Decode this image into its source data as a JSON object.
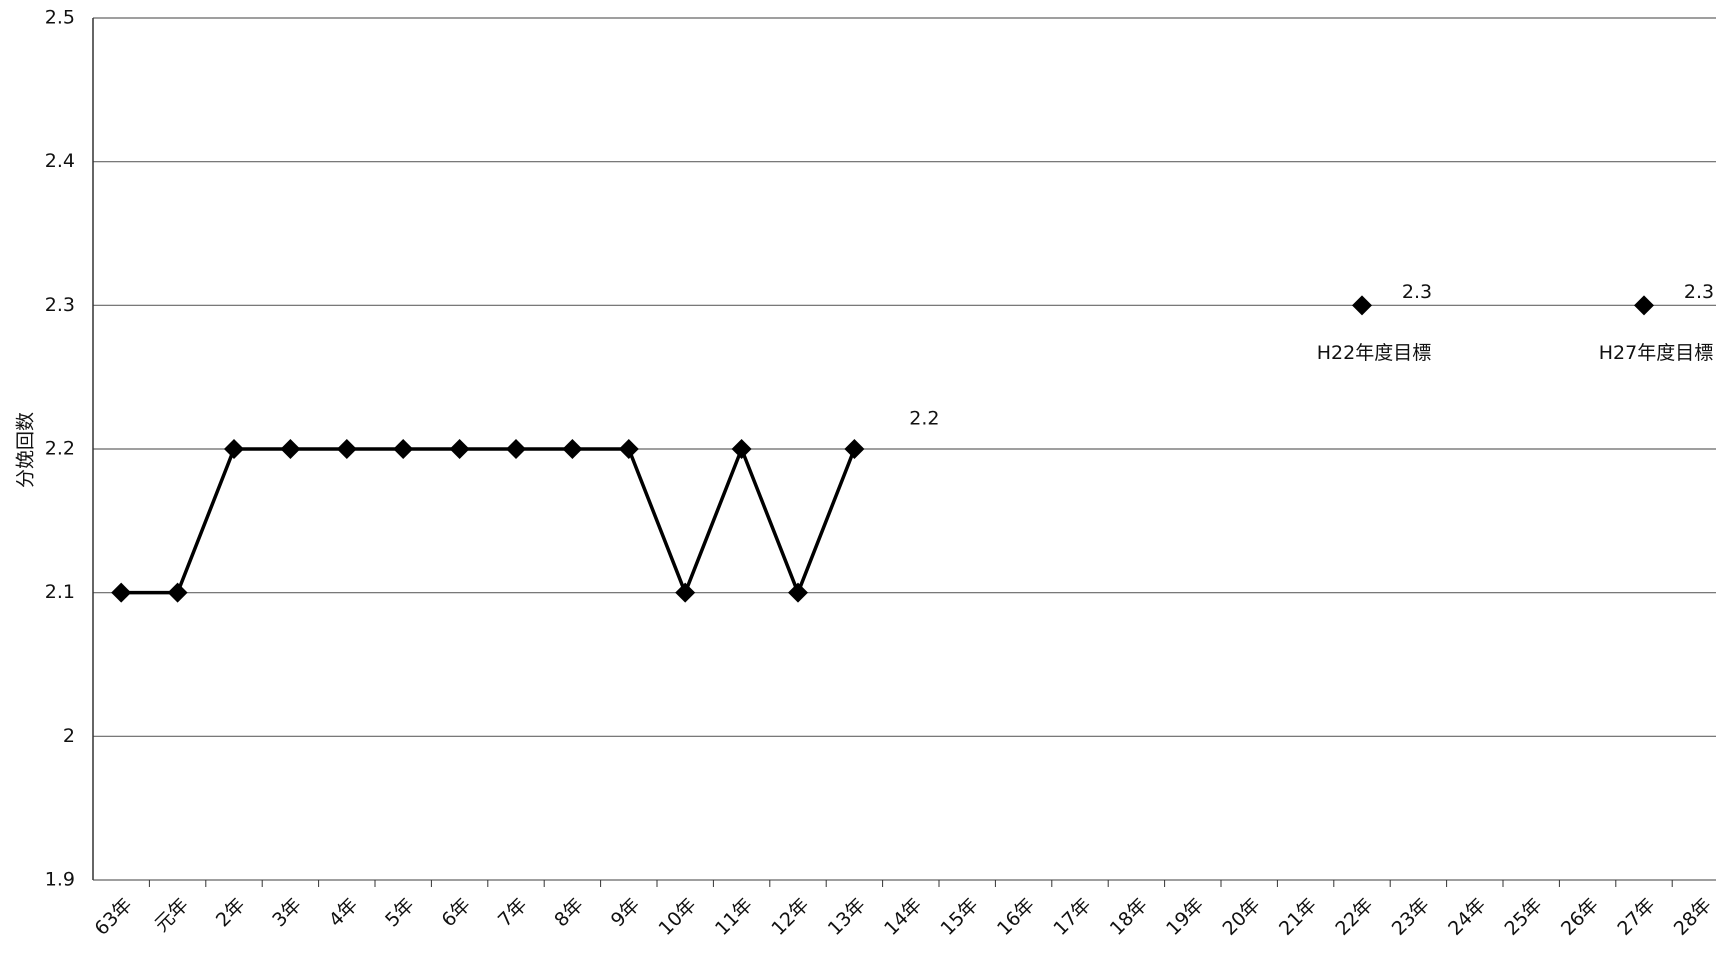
{
  "chart_data": {
    "type": "line",
    "y_label": "分娩回数",
    "categories": [
      "63年",
      "元年",
      "2年",
      "3年",
      "4年",
      "5年",
      "6年",
      "7年",
      "8年",
      "9年",
      "10年",
      "11年",
      "12年",
      "13年",
      "14年",
      "15年",
      "16年",
      "17年",
      "18年",
      "19年",
      "20年",
      "21年",
      "22年",
      "23年",
      "24年",
      "25年",
      "26年",
      "27年",
      "28年"
    ],
    "series": [
      {
        "color": "#000000",
        "connected": true,
        "values": [
          2.1,
          2.1,
          2.2,
          2.2,
          2.2,
          2.2,
          2.2,
          2.2,
          2.2,
          2.2,
          2.1,
          2.2,
          2.1,
          2.2,
          null,
          null,
          null,
          null,
          null,
          null,
          null,
          null,
          null,
          null,
          null,
          null,
          null,
          null,
          null
        ],
        "value_labels": [
          null,
          null,
          null,
          null,
          null,
          null,
          null,
          null,
          null,
          null,
          null,
          null,
          null,
          "2.2",
          null,
          null,
          null,
          null,
          null,
          null,
          null,
          null,
          null,
          null,
          null,
          null,
          null,
          null,
          null
        ]
      },
      {
        "color": "#000000",
        "connected": false,
        "values": [
          null,
          null,
          null,
          null,
          null,
          null,
          null,
          null,
          null,
          null,
          null,
          null,
          null,
          null,
          null,
          null,
          null,
          null,
          null,
          null,
          null,
          null,
          2.3,
          null,
          null,
          null,
          null,
          2.3,
          null
        ],
        "value_labels": [
          null,
          null,
          null,
          null,
          null,
          null,
          null,
          null,
          null,
          null,
          null,
          null,
          null,
          null,
          null,
          null,
          null,
          null,
          null,
          null,
          null,
          null,
          "2.3",
          null,
          null,
          null,
          null,
          "2.3",
          null
        ],
        "annotations": [
          "H22年度目標",
          "H27年度目標"
        ]
      }
    ],
    "ylim": [
      1.9,
      2.5
    ],
    "yticks": [
      1.9,
      2,
      2.1,
      2.2,
      2.3,
      2.4,
      2.5
    ],
    "grid": true
  }
}
